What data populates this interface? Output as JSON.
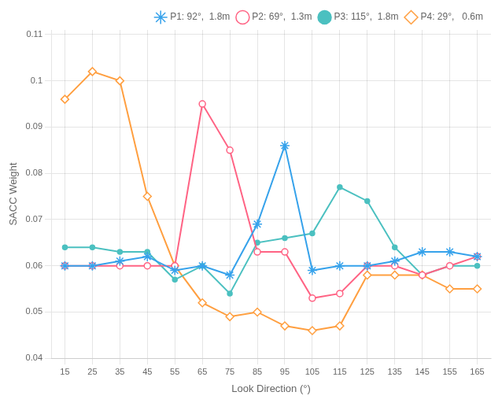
{
  "chart_data": {
    "type": "line",
    "xlabel": "Look Direction (°)",
    "ylabel": "SACC Weight",
    "x": [
      15,
      25,
      35,
      45,
      55,
      65,
      75,
      85,
      95,
      105,
      115,
      125,
      135,
      145,
      155,
      165
    ],
    "series": [
      {
        "name": "P1: 92°,  1.8m",
        "marker": "star",
        "values": [
          0.06,
          0.06,
          0.061,
          0.062,
          0.059,
          0.06,
          0.058,
          0.069,
          0.086,
          0.059,
          0.06,
          0.06,
          0.061,
          0.063,
          0.063,
          0.062
        ]
      },
      {
        "name": "P2: 69°,  1.3m",
        "marker": "open_circle",
        "values": [
          0.06,
          0.06,
          0.06,
          0.06,
          0.06,
          0.095,
          0.085,
          0.063,
          0.063,
          0.053,
          0.054,
          0.06,
          0.06,
          0.058,
          0.06,
          0.062
        ]
      },
      {
        "name": "P3: 115°,  1.8m",
        "marker": "dot",
        "values": [
          0.064,
          0.064,
          0.063,
          0.063,
          0.057,
          0.06,
          0.054,
          0.065,
          0.066,
          0.067,
          0.077,
          0.074,
          0.064,
          0.058,
          0.06,
          0.06
        ]
      },
      {
        "name": "P4: 29°,   0.6m",
        "marker": "open_diamond",
        "values": [
          0.096,
          0.102,
          0.1,
          0.075,
          0.06,
          0.052,
          0.049,
          0.05,
          0.047,
          0.046,
          0.047,
          0.058,
          0.058,
          0.058,
          0.055,
          0.055
        ]
      }
    ],
    "xlim": [
      10,
      170
    ],
    "xticks": [
      15,
      25,
      35,
      45,
      55,
      65,
      75,
      85,
      95,
      105,
      115,
      125,
      135,
      145,
      155,
      165
    ],
    "ylim": [
      0.04,
      0.111
    ],
    "yticks": [
      0.04,
      0.05,
      0.06,
      0.07,
      0.08,
      0.09,
      0.1,
      0.11
    ],
    "grid": true,
    "legend": "upper right"
  }
}
